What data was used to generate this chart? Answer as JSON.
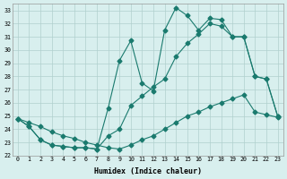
{
  "xlabel": "Humidex (Indice chaleur)",
  "background_color": "#d8efee",
  "grid_color": "#b0d0ce",
  "line_color": "#1a7a6e",
  "xlim": [
    -0.5,
    23.5
  ],
  "ylim": [
    22,
    33.5
  ],
  "xticks": [
    0,
    1,
    2,
    3,
    4,
    5,
    6,
    7,
    8,
    9,
    10,
    11,
    12,
    13,
    14,
    15,
    16,
    17,
    18,
    19,
    20,
    21,
    22,
    23
  ],
  "yticks": [
    22,
    23,
    24,
    25,
    26,
    27,
    28,
    29,
    30,
    31,
    32,
    33
  ],
  "line1_x": [
    0,
    1,
    2,
    3,
    4,
    5,
    6,
    7,
    8,
    9,
    10,
    11,
    12,
    13,
    14,
    15,
    16,
    17,
    18,
    19,
    20,
    21,
    22,
    23
  ],
  "line1_y": [
    24.8,
    24.2,
    23.2,
    22.8,
    22.7,
    22.6,
    22.6,
    22.5,
    25.6,
    29.2,
    30.7,
    27.5,
    26.9,
    31.5,
    33.2,
    32.6,
    31.5,
    32.4,
    32.3,
    31.0,
    31.0,
    28.0,
    27.8,
    25.0
  ],
  "line2_x": [
    0,
    1,
    2,
    3,
    4,
    5,
    6,
    7,
    8,
    9,
    10,
    11,
    12,
    13,
    14,
    15,
    16,
    17,
    18,
    19,
    20,
    21,
    22,
    23
  ],
  "line2_y": [
    24.8,
    24.2,
    23.2,
    22.8,
    22.7,
    22.6,
    22.6,
    22.5,
    23.5,
    24.0,
    25.8,
    26.5,
    27.2,
    27.8,
    29.5,
    30.5,
    31.2,
    32.0,
    31.8,
    31.0,
    31.0,
    28.0,
    27.8,
    25.0
  ],
  "line3_x": [
    0,
    1,
    2,
    3,
    4,
    5,
    6,
    7,
    8,
    9,
    10,
    11,
    12,
    13,
    14,
    15,
    16,
    17,
    18,
    19,
    20,
    21,
    22,
    23
  ],
  "line3_y": [
    24.8,
    24.5,
    24.2,
    23.8,
    23.5,
    23.3,
    23.0,
    22.8,
    22.6,
    22.5,
    22.8,
    23.2,
    23.5,
    24.0,
    24.5,
    25.0,
    25.3,
    25.7,
    26.0,
    26.3,
    26.6,
    25.3,
    25.1,
    24.9
  ]
}
